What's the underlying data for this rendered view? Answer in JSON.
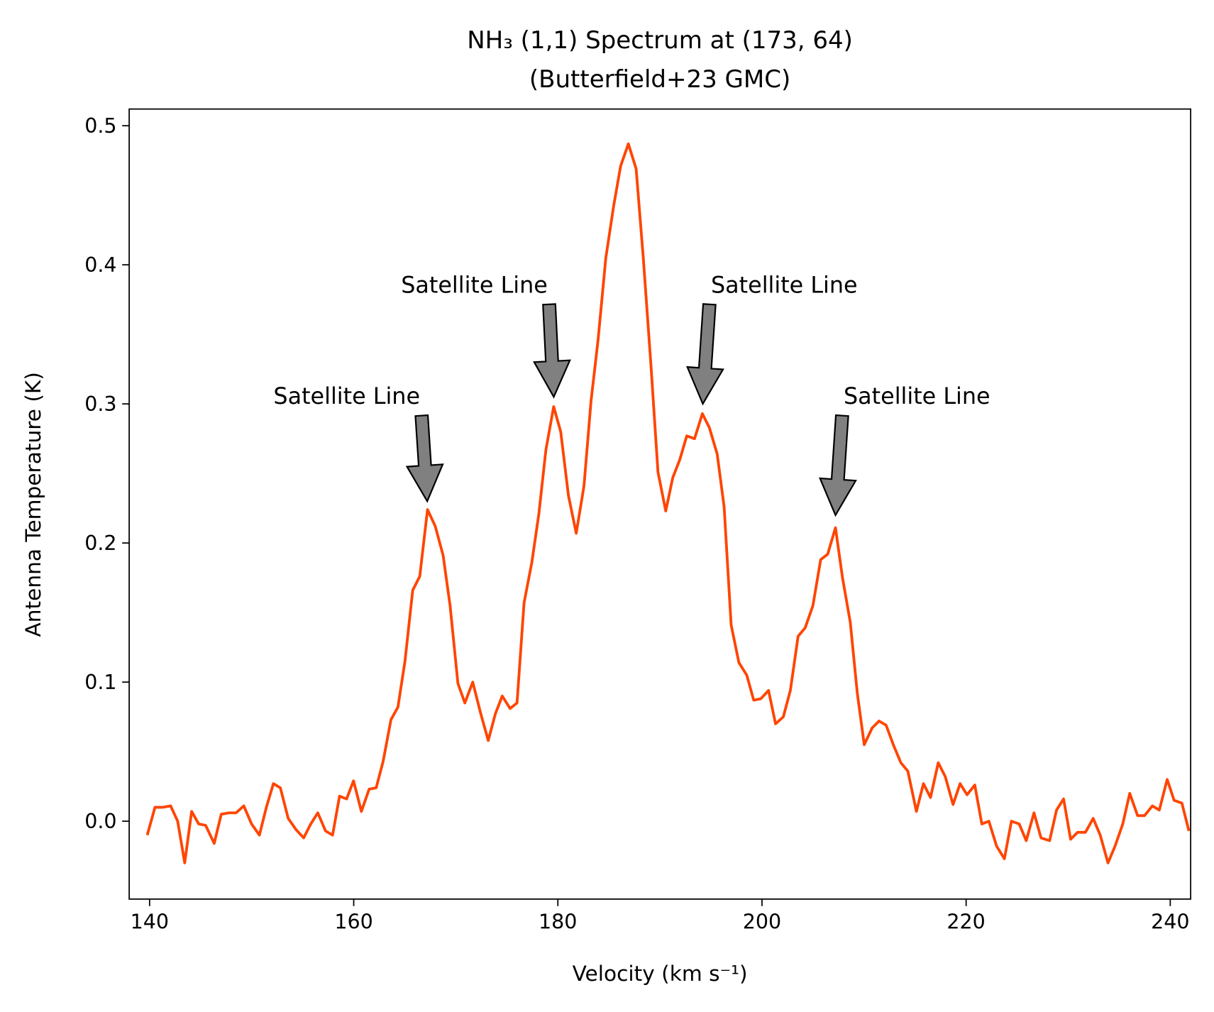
{
  "chart_data": {
    "type": "line",
    "title": "NH₃ (1,1) Spectrum at (173, 64)",
    "subtitle": "(Butterfield+23 GMC)",
    "xlabel": "Velocity (km s⁻¹)",
    "ylabel": "Antenna Temperature (K)",
    "color": "#ff4500",
    "xlim": [
      138,
      242
    ],
    "ylim": [
      -0.056,
      0.512
    ],
    "xticks": [
      140,
      160,
      180,
      200,
      220,
      240
    ],
    "yticks": [
      {
        "value": 0,
        "label": "0.0"
      },
      0.1,
      0.2,
      0.3,
      0.4,
      0.5
    ],
    "x": [
      139.77,
      140.53,
      141.3,
      142.06,
      142.75,
      143.44,
      144.12,
      144.81,
      145.49,
      146.33,
      147.02,
      147.78,
      148.47,
      149.23,
      149.99,
      150.76,
      151.44,
      152.13,
      152.81,
      153.58,
      154.34,
      155.1,
      155.79,
      156.48,
      157.24,
      157.93,
      158.61,
      159.3,
      159.98,
      160.75,
      161.51,
      162.2,
      162.88,
      163.65,
      164.33,
      165.02,
      165.78,
      166.47,
      167.23,
      167.99,
      168.76,
      169.44,
      170.21,
      170.89,
      171.66,
      172.42,
      173.18,
      173.87,
      174.55,
      175.32,
      176.0,
      176.69,
      177.45,
      178.14,
      178.83,
      179.59,
      180.28,
      181.04,
      181.8,
      182.56,
      183.25,
      183.94,
      184.7,
      185.46,
      186.15,
      186.91,
      187.67,
      188.36,
      189.12,
      189.81,
      190.57,
      191.26,
      191.95,
      192.63,
      193.39,
      194.16,
      194.84,
      195.61,
      196.29,
      196.98,
      197.74,
      198.51,
      199.19,
      199.88,
      200.64,
      201.33,
      202.09,
      202.78,
      203.54,
      204.23,
      204.99,
      205.75,
      206.44,
      207.2,
      207.89,
      208.65,
      209.34,
      210.02,
      210.79,
      211.47,
      212.16,
      212.92,
      213.61,
      214.29,
      215.13,
      215.82,
      216.51,
      217.27,
      217.96,
      218.72,
      219.41,
      220.09,
      220.85,
      221.54,
      222.23,
      222.99,
      223.75,
      224.44,
      225.2,
      225.89,
      226.65,
      227.34,
      228.18,
      228.86,
      229.55,
      230.24,
      230.92,
      231.69,
      232.45,
      233.14,
      233.9,
      234.59,
      235.35,
      236.03,
      236.8,
      237.48,
      238.25,
      238.93,
      239.7,
      240.38,
      241.14,
      241.83
    ],
    "values": [
      -0.01,
      0.01,
      0.01,
      0.011,
      0,
      -0.03,
      0.007,
      -0.002,
      -0.003,
      -0.016,
      0.005,
      0.006,
      0.006,
      0.011,
      -0.002,
      -0.01,
      0.01,
      0.027,
      0.024,
      0.002,
      -0.006,
      -0.012,
      -0.002,
      0.006,
      -0.007,
      -0.01,
      0.018,
      0.016,
      0.029,
      0.007,
      0.023,
      0.024,
      0.043,
      0.073,
      0.082,
      0.115,
      0.166,
      0.176,
      0.224,
      0.212,
      0.191,
      0.155,
      0.099,
      0.085,
      0.1,
      0.078,
      0.058,
      0.077,
      0.09,
      0.081,
      0.085,
      0.157,
      0.186,
      0.221,
      0.267,
      0.298,
      0.28,
      0.234,
      0.207,
      0.241,
      0.302,
      0.346,
      0.405,
      0.442,
      0.471,
      0.487,
      0.469,
      0.406,
      0.328,
      0.251,
      0.223,
      0.247,
      0.26,
      0.277,
      0.275,
      0.293,
      0.283,
      0.264,
      0.226,
      0.141,
      0.114,
      0.105,
      0.087,
      0.088,
      0.094,
      0.07,
      0.075,
      0.094,
      0.133,
      0.139,
      0.155,
      0.188,
      0.192,
      0.211,
      0.175,
      0.143,
      0.092,
      0.055,
      0.067,
      0.072,
      0.069,
      0.054,
      0.042,
      0.036,
      0.007,
      0.027,
      0.017,
      0.042,
      0.032,
      0.012,
      0.027,
      0.019,
      0.026,
      -0.002,
      0,
      -0.018,
      -0.027,
      0,
      -0.002,
      -0.014,
      0.006,
      -0.012,
      -0.014,
      0.008,
      0.016,
      -0.013,
      -0.008,
      -0.008,
      0.002,
      -0.01,
      -0.03,
      -0.018,
      -0.002,
      0.02,
      0.004,
      0.004,
      0.011,
      0.008,
      0.03,
      0.015,
      0.013,
      -0.007
    ],
    "annotations": [
      {
        "text": "Satellite Line",
        "xy": [
          167.2,
          0.23
        ],
        "xytext": [
          166.5,
          0.3
        ],
        "ha": "right"
      },
      {
        "text": "Satellite Line",
        "xy": [
          179.6,
          0.305
        ],
        "xytext": [
          179,
          0.38
        ],
        "ha": "right"
      },
      {
        "text": "Satellite Line",
        "xy": [
          194.2,
          0.3
        ],
        "xytext": [
          195,
          0.38
        ],
        "ha": "left"
      },
      {
        "text": "Satellite Line",
        "xy": [
          207.2,
          0.22
        ],
        "xytext": [
          208,
          0.3
        ],
        "ha": "left"
      }
    ]
  }
}
